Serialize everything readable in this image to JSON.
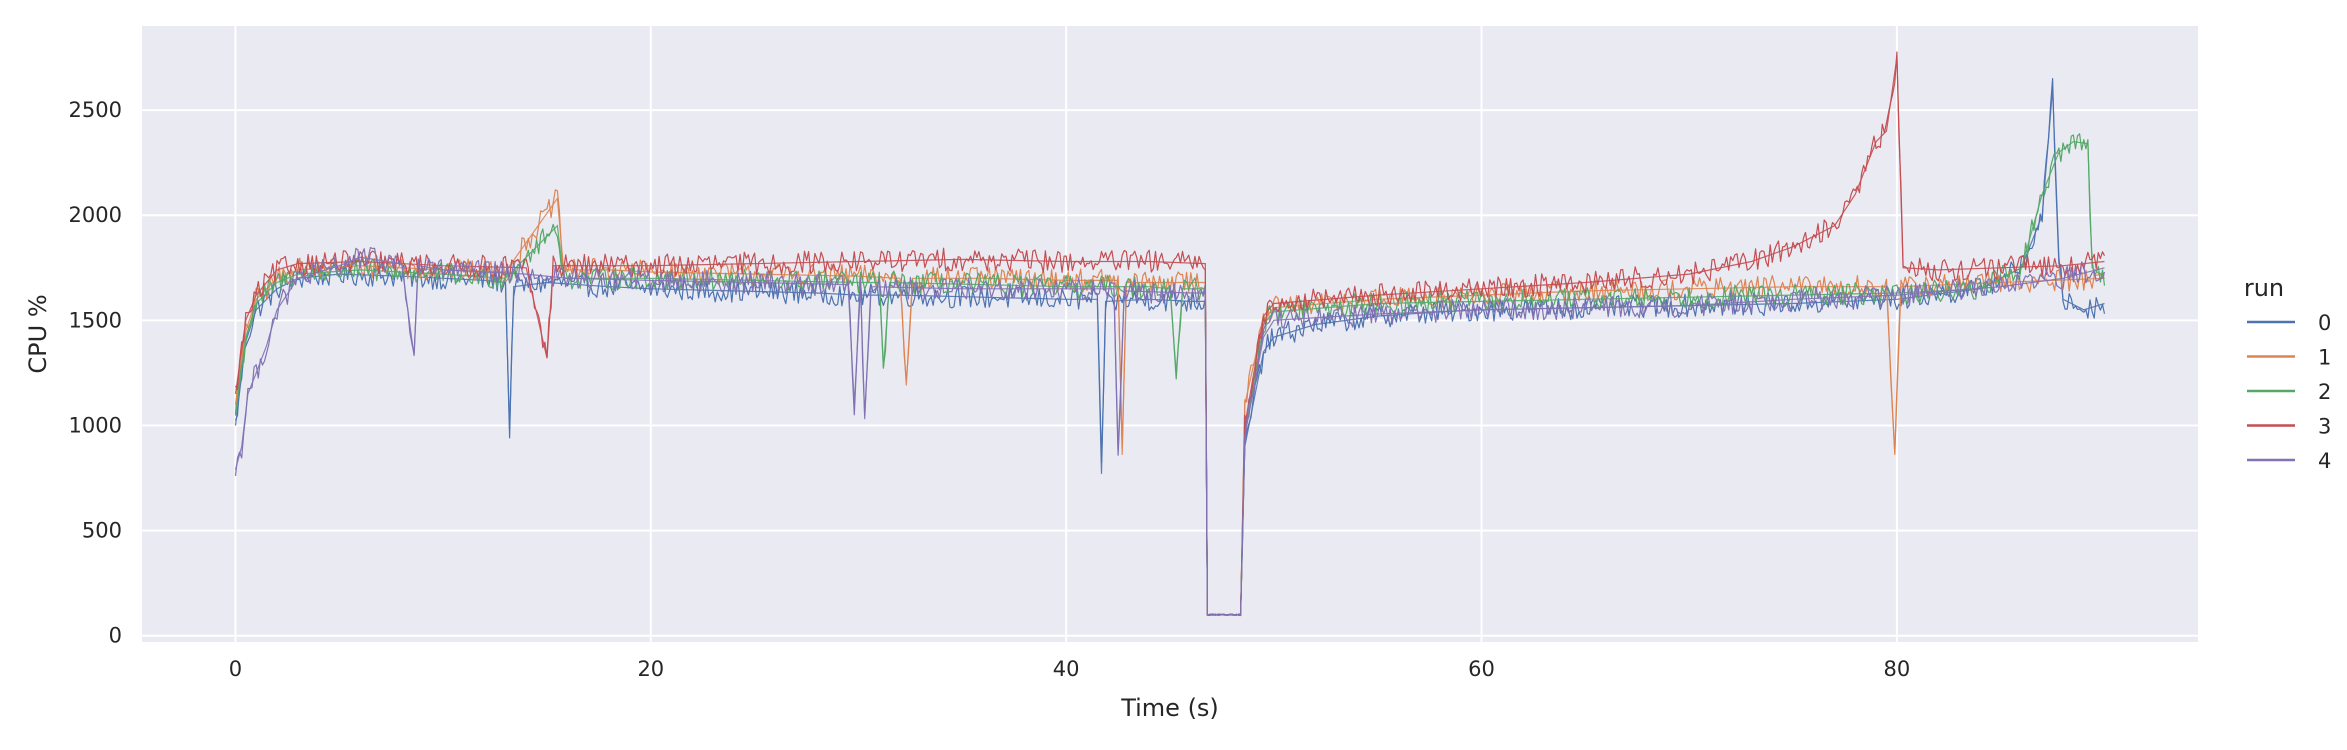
{
  "chart_data": {
    "type": "line",
    "xlabel": "Time (s)",
    "ylabel": "CPU %",
    "xlim": [
      -4.5,
      94.5
    ],
    "ylim": [
      -30,
      2900
    ],
    "xticks": [
      0,
      20,
      40,
      60,
      80
    ],
    "yticks": [
      0,
      500,
      1000,
      1500,
      2000,
      2500
    ],
    "grid": true,
    "legend": {
      "title": "run",
      "position": "right"
    },
    "series": [
      {
        "name": "0",
        "color": "#4c72b0",
        "points": [
          [
            0,
            1000
          ],
          [
            0.5,
            1400
          ],
          [
            1,
            1550
          ],
          [
            2,
            1650
          ],
          [
            3,
            1700
          ],
          [
            5,
            1720
          ],
          [
            8,
            1710
          ],
          [
            10,
            1700
          ],
          [
            12,
            1690
          ],
          [
            13,
            1680
          ],
          [
            13.2,
            980
          ],
          [
            13.4,
            1660
          ],
          [
            15,
            1680
          ],
          [
            18,
            1660
          ],
          [
            20,
            1650
          ],
          [
            24,
            1640
          ],
          [
            28,
            1630
          ],
          [
            30,
            1620
          ],
          [
            32,
            1620
          ],
          [
            36,
            1610
          ],
          [
            40,
            1600
          ],
          [
            41.5,
            1600
          ],
          [
            41.7,
            770
          ],
          [
            41.9,
            1590
          ],
          [
            44,
            1600
          ],
          [
            46,
            1590
          ],
          [
            46.7,
            1590
          ],
          [
            46.8,
            100
          ],
          [
            48,
            100
          ],
          [
            48.4,
            100
          ],
          [
            48.6,
            900
          ],
          [
            49.5,
            1350
          ],
          [
            50,
            1420
          ],
          [
            52,
            1480
          ],
          [
            55,
            1520
          ],
          [
            58,
            1540
          ],
          [
            60,
            1550
          ],
          [
            65,
            1560
          ],
          [
            70,
            1570
          ],
          [
            75,
            1580
          ],
          [
            80,
            1600
          ],
          [
            84,
            1650
          ],
          [
            86,
            1750
          ],
          [
            87,
            2000
          ],
          [
            87.5,
            2600
          ],
          [
            87.8,
            1800
          ],
          [
            88,
            1600
          ],
          [
            89,
            1550
          ],
          [
            90,
            1580
          ]
        ]
      },
      {
        "name": "1",
        "color": "#dd8452",
        "points": [
          [
            0,
            1100
          ],
          [
            0.5,
            1450
          ],
          [
            1,
            1600
          ],
          [
            2,
            1700
          ],
          [
            3,
            1740
          ],
          [
            6,
            1760
          ],
          [
            10,
            1740
          ],
          [
            13,
            1730
          ],
          [
            15.5,
            2080
          ],
          [
            15.8,
            1740
          ],
          [
            18,
            1740
          ],
          [
            20,
            1730
          ],
          [
            25,
            1720
          ],
          [
            30,
            1710
          ],
          [
            32,
            1700
          ],
          [
            32.3,
            1190
          ],
          [
            32.6,
            1700
          ],
          [
            36,
            1700
          ],
          [
            40,
            1690
          ],
          [
            42.5,
            1690
          ],
          [
            42.7,
            860
          ],
          [
            42.9,
            1680
          ],
          [
            46,
            1680
          ],
          [
            46.7,
            1680
          ],
          [
            46.8,
            100
          ],
          [
            48.4,
            100
          ],
          [
            48.6,
            1100
          ],
          [
            49.5,
            1500
          ],
          [
            50,
            1560
          ],
          [
            55,
            1600
          ],
          [
            60,
            1620
          ],
          [
            65,
            1640
          ],
          [
            70,
            1650
          ],
          [
            75,
            1660
          ],
          [
            79.5,
            1660
          ],
          [
            79.9,
            860
          ],
          [
            80.2,
            1660
          ],
          [
            85,
            1680
          ],
          [
            90,
            1700
          ]
        ]
      },
      {
        "name": "2",
        "color": "#55a868",
        "points": [
          [
            0,
            1050
          ],
          [
            0.5,
            1420
          ],
          [
            1,
            1580
          ],
          [
            2,
            1680
          ],
          [
            3,
            1720
          ],
          [
            6,
            1740
          ],
          [
            10,
            1720
          ],
          [
            13,
            1700
          ],
          [
            15.5,
            1950
          ],
          [
            15.8,
            1700
          ],
          [
            18,
            1700
          ],
          [
            20,
            1700
          ],
          [
            25,
            1690
          ],
          [
            30,
            1680
          ],
          [
            31,
            1680
          ],
          [
            31.2,
            1270
          ],
          [
            31.5,
            1680
          ],
          [
            36,
            1670
          ],
          [
            40,
            1660
          ],
          [
            44,
            1660
          ],
          [
            45,
            1650
          ],
          [
            45.3,
            1250
          ],
          [
            45.6,
            1650
          ],
          [
            46.7,
            1650
          ],
          [
            46.8,
            100
          ],
          [
            48.4,
            100
          ],
          [
            48.6,
            950
          ],
          [
            49.5,
            1480
          ],
          [
            50,
            1540
          ],
          [
            55,
            1580
          ],
          [
            60,
            1590
          ],
          [
            65,
            1600
          ],
          [
            70,
            1610
          ],
          [
            75,
            1620
          ],
          [
            80,
            1630
          ],
          [
            84,
            1650
          ],
          [
            86,
            1750
          ],
          [
            87,
            2100
          ],
          [
            87.8,
            2300
          ],
          [
            88.5,
            2350
          ],
          [
            89.2,
            2340
          ],
          [
            89.4,
            1750
          ],
          [
            90,
            1700
          ]
        ]
      },
      {
        "name": "3",
        "color": "#c44e52",
        "points": [
          [
            0,
            1150
          ],
          [
            0.5,
            1500
          ],
          [
            1,
            1620
          ],
          [
            2,
            1740
          ],
          [
            3,
            1770
          ],
          [
            6,
            1780
          ],
          [
            10,
            1760
          ],
          [
            14,
            1750
          ],
          [
            15,
            1320
          ],
          [
            15.3,
            1760
          ],
          [
            18,
            1760
          ],
          [
            20,
            1760
          ],
          [
            25,
            1770
          ],
          [
            30,
            1780
          ],
          [
            35,
            1790
          ],
          [
            40,
            1780
          ],
          [
            44,
            1780
          ],
          [
            46.7,
            1770
          ],
          [
            46.8,
            100
          ],
          [
            48.4,
            100
          ],
          [
            48.6,
            1000
          ],
          [
            49.5,
            1520
          ],
          [
            50,
            1580
          ],
          [
            55,
            1620
          ],
          [
            60,
            1650
          ],
          [
            65,
            1680
          ],
          [
            70,
            1720
          ],
          [
            73,
            1780
          ],
          [
            75,
            1850
          ],
          [
            77,
            1950
          ],
          [
            78,
            2100
          ],
          [
            79,
            2350
          ],
          [
            79.5,
            2400
          ],
          [
            80,
            2750
          ],
          [
            80.3,
            1750
          ],
          [
            82,
            1740
          ],
          [
            85,
            1750
          ],
          [
            88,
            1760
          ],
          [
            90,
            1780
          ]
        ]
      },
      {
        "name": "4",
        "color": "#8172b3",
        "points": [
          [
            0,
            790
          ],
          [
            0.3,
            900
          ],
          [
            0.6,
            1150
          ],
          [
            1,
            1250
          ],
          [
            1.5,
            1380
          ],
          [
            2,
            1550
          ],
          [
            3,
            1700
          ],
          [
            5,
            1760
          ],
          [
            6,
            1800
          ],
          [
            8,
            1770
          ],
          [
            8.6,
            1330
          ],
          [
            8.8,
            1760
          ],
          [
            10,
            1740
          ],
          [
            14,
            1720
          ],
          [
            16,
            1700
          ],
          [
            20,
            1690
          ],
          [
            25,
            1680
          ],
          [
            29.5,
            1670
          ],
          [
            29.8,
            1100
          ],
          [
            30.1,
            1660
          ],
          [
            30.3,
            1030
          ],
          [
            30.6,
            1660
          ],
          [
            35,
            1650
          ],
          [
            40,
            1650
          ],
          [
            42.3,
            1650
          ],
          [
            42.5,
            880
          ],
          [
            42.8,
            1640
          ],
          [
            46,
            1630
          ],
          [
            46.7,
            1630
          ],
          [
            46.8,
            100
          ],
          [
            48.4,
            100
          ],
          [
            48.6,
            950
          ],
          [
            49.5,
            1420
          ],
          [
            50,
            1500
          ],
          [
            55,
            1530
          ],
          [
            60,
            1550
          ],
          [
            65,
            1560
          ],
          [
            70,
            1570
          ],
          [
            75,
            1600
          ],
          [
            80,
            1620
          ],
          [
            85,
            1660
          ],
          [
            88,
            1700
          ],
          [
            90,
            1750
          ]
        ]
      }
    ]
  }
}
